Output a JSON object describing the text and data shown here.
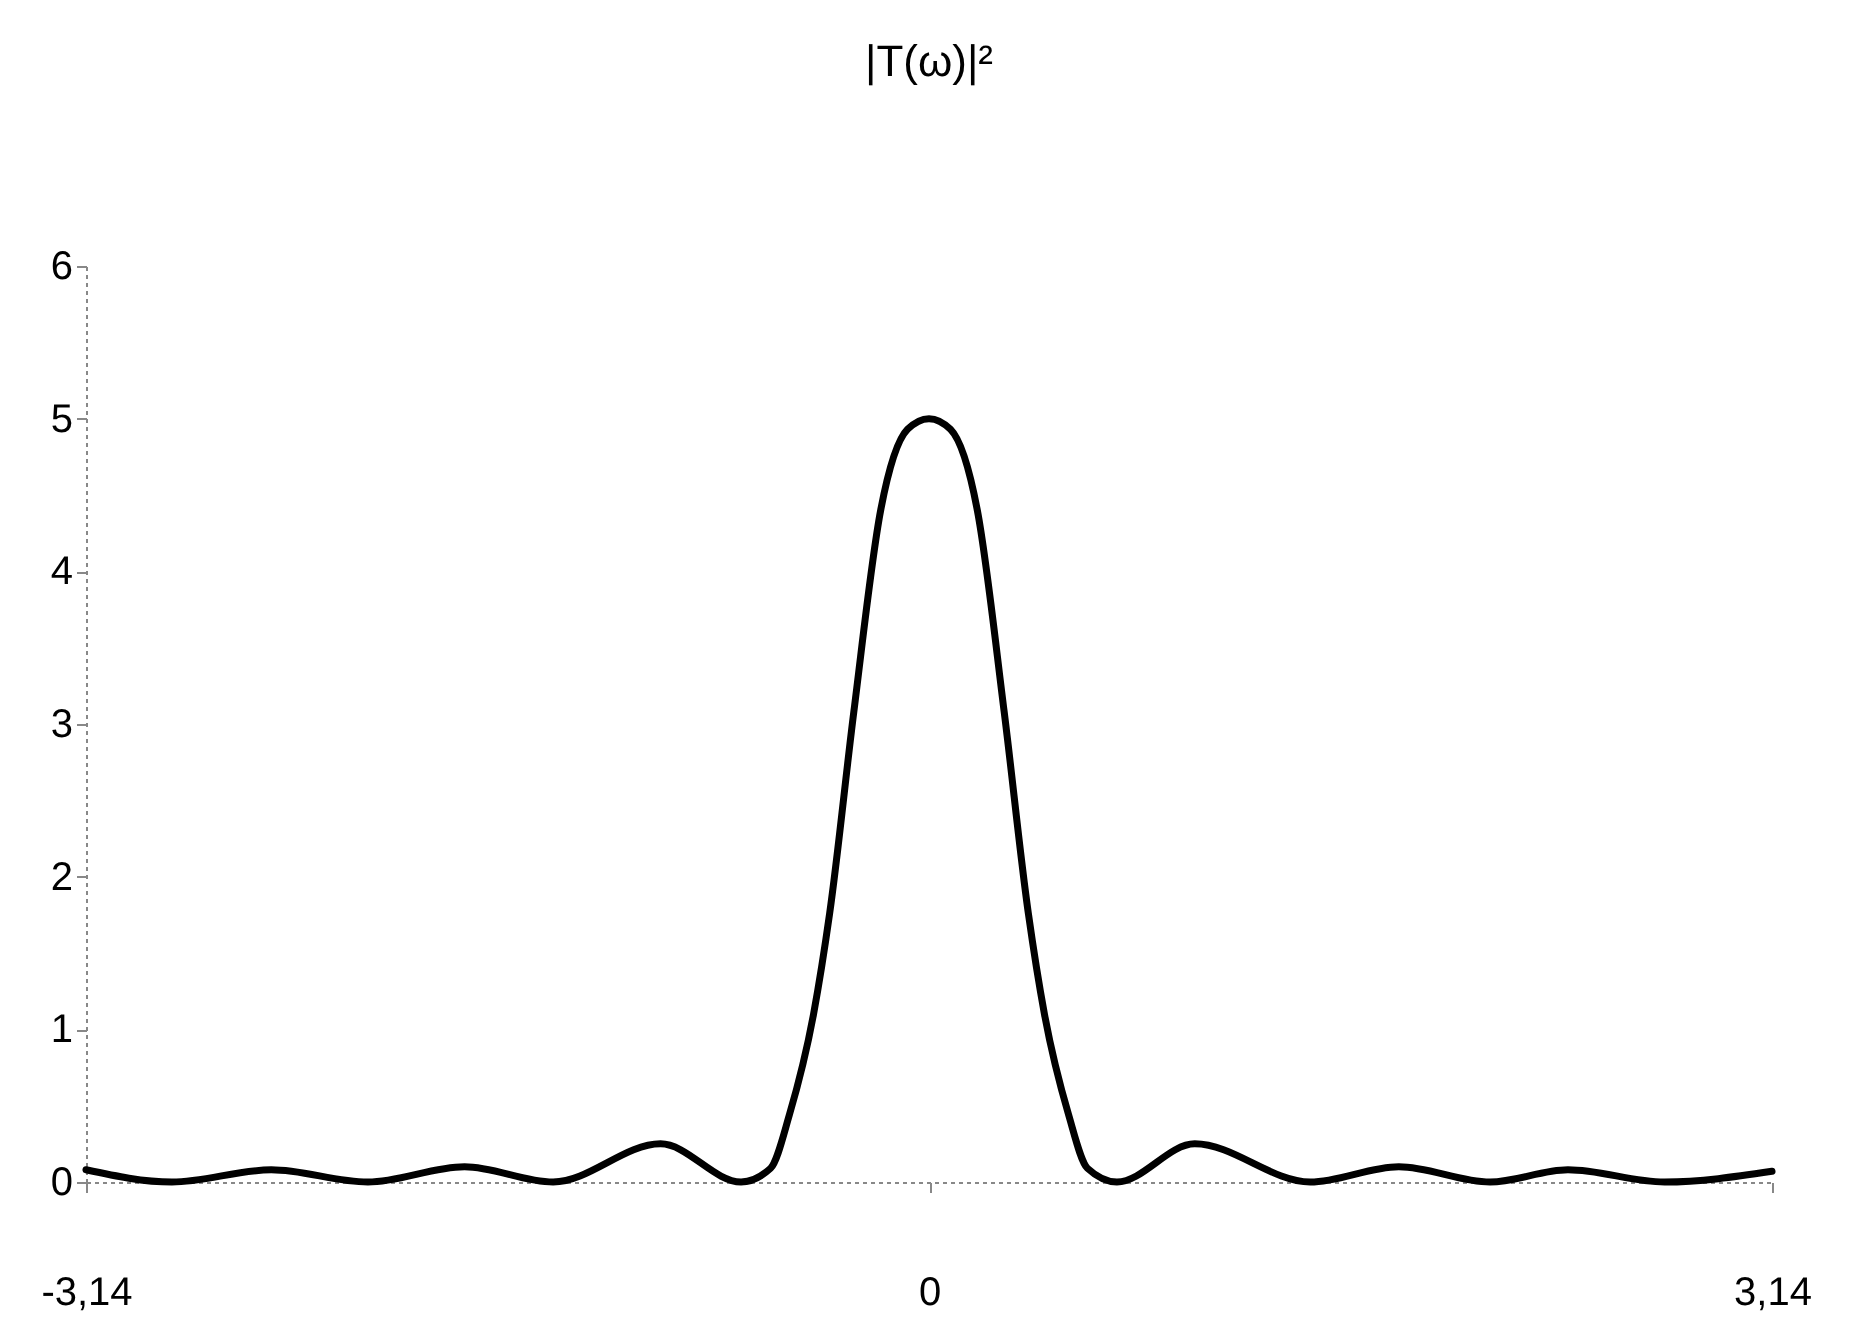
{
  "chart_data": {
    "type": "line",
    "title": "|T(ω)|²",
    "x": [
      -3.14,
      -2.82,
      -2.45,
      -2.09,
      -1.73,
      -1.4,
      -1.0,
      -0.7,
      -0.59,
      -0.52,
      -0.43,
      -0.37,
      -0.28,
      -0.18,
      -0.08,
      0,
      0.08,
      0.18,
      0.28,
      0.37,
      0.43,
      0.52,
      0.59,
      0.7,
      0.99,
      1.42,
      1.75,
      2.09,
      2.38,
      2.74,
      3.14
    ],
    "series": [
      {
        "color": "#000000",
        "values": [
          0.08,
          0,
          0.08,
          0,
          0.1,
          0,
          0.25,
          0,
          0.09,
          0.44,
          1.1,
          1.76,
          3.08,
          4.4,
          4.93,
          5.0,
          4.93,
          4.4,
          3.08,
          1.76,
          1.1,
          0.44,
          0.09,
          0,
          0.25,
          0,
          0.1,
          0,
          0.08,
          0,
          0.07
        ]
      }
    ],
    "xlim": [
      -3.14,
      3.14
    ],
    "xticks": [
      {
        "value": -3.14,
        "label": "-3,14"
      },
      0,
      {
        "value": 3.14,
        "label": "3,14"
      }
    ],
    "ylim": [
      0,
      6
    ],
    "yticks": [
      0,
      1,
      2,
      3,
      4,
      5,
      6
    ],
    "grid": false,
    "legend": false,
    "marker": "none",
    "line_style": "solid"
  }
}
